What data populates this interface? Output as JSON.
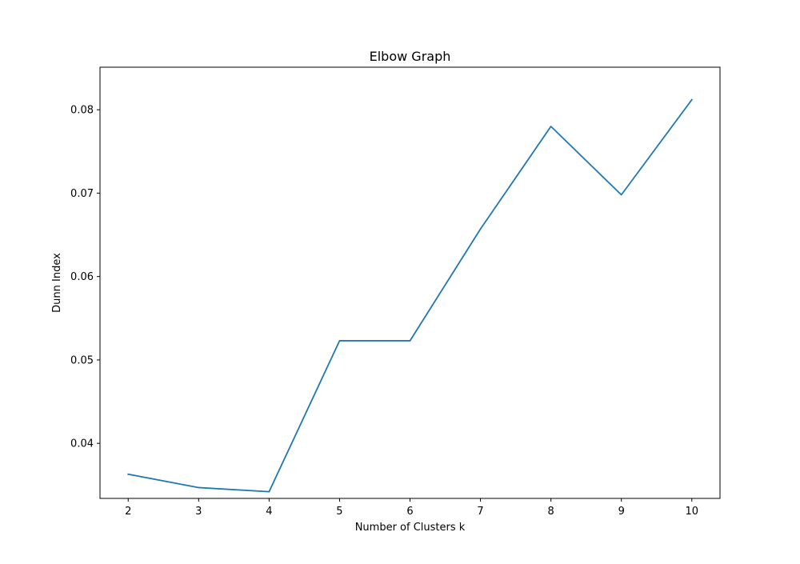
{
  "chart_data": {
    "type": "line",
    "title": "Elbow Graph",
    "xlabel": "Number of Clusters k",
    "ylabel": "Dunn Index",
    "x": [
      2,
      3,
      4,
      5,
      6,
      7,
      8,
      9,
      10
    ],
    "series": [
      {
        "values": [
          0.0363,
          0.0347,
          0.0342,
          0.0523,
          0.0523,
          0.0657,
          0.078,
          0.0698,
          0.0812
        ],
        "color": "#1f77b4"
      }
    ],
    "xlim": [
      1.6,
      10.4
    ],
    "ylim": [
      0.0334,
      0.0851
    ],
    "xticks": [
      "2",
      "3",
      "4",
      "5",
      "6",
      "7",
      "8",
      "9",
      "10"
    ],
    "yticks": [
      "0.04",
      "0.05",
      "0.06",
      "0.07",
      "0.08"
    ],
    "grid": false,
    "legend": "none"
  }
}
